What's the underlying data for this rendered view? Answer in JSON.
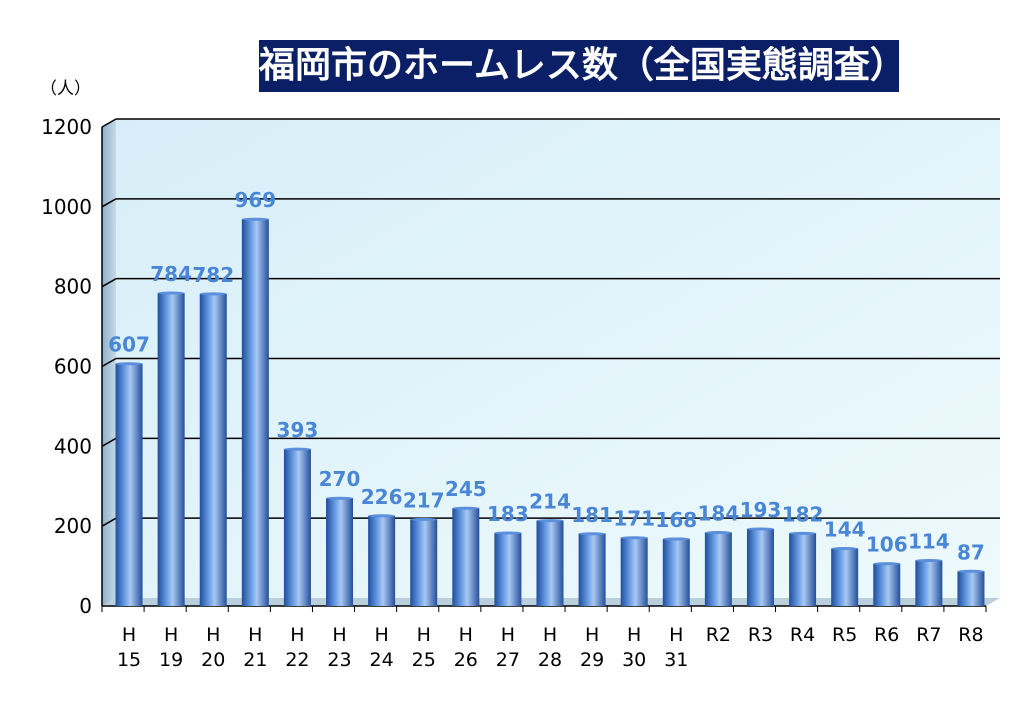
{
  "chart_data": {
    "type": "bar",
    "title": "福岡市のホームレス数（全国実態調査）",
    "unit_label": "（人）",
    "categories": [
      [
        "H",
        "15"
      ],
      [
        "H",
        "19"
      ],
      [
        "H",
        "20"
      ],
      [
        "H",
        "21"
      ],
      [
        "H",
        "22"
      ],
      [
        "H",
        "23"
      ],
      [
        "H",
        "24"
      ],
      [
        "H",
        "25"
      ],
      [
        "H",
        "26"
      ],
      [
        "H",
        "27"
      ],
      [
        "H",
        "28"
      ],
      [
        "H",
        "29"
      ],
      [
        "H",
        "30"
      ],
      [
        "H",
        "31"
      ],
      [
        "R2",
        ""
      ],
      [
        "R3",
        ""
      ],
      [
        "R4",
        ""
      ],
      [
        "R5",
        ""
      ],
      [
        "R6",
        ""
      ],
      [
        "R7",
        ""
      ],
      [
        "R8",
        ""
      ]
    ],
    "values": [
      607,
      784,
      782,
      969,
      393,
      270,
      226,
      217,
      245,
      183,
      214,
      181,
      171,
      168,
      184,
      193,
      182,
      144,
      106,
      114,
      87
    ],
    "ylim": [
      0,
      1200
    ],
    "yticks": [
      0,
      200,
      400,
      600,
      800,
      1000,
      1200
    ],
    "grid": true,
    "colors": {
      "bar": "#4a7fd4",
      "bar_dark": "#1f4e9c",
      "bar_light": "#a9c8f2",
      "label": "#4a86d6",
      "title_bg": "#0b1f66",
      "plot_bg": "#e6f6fb"
    }
  }
}
